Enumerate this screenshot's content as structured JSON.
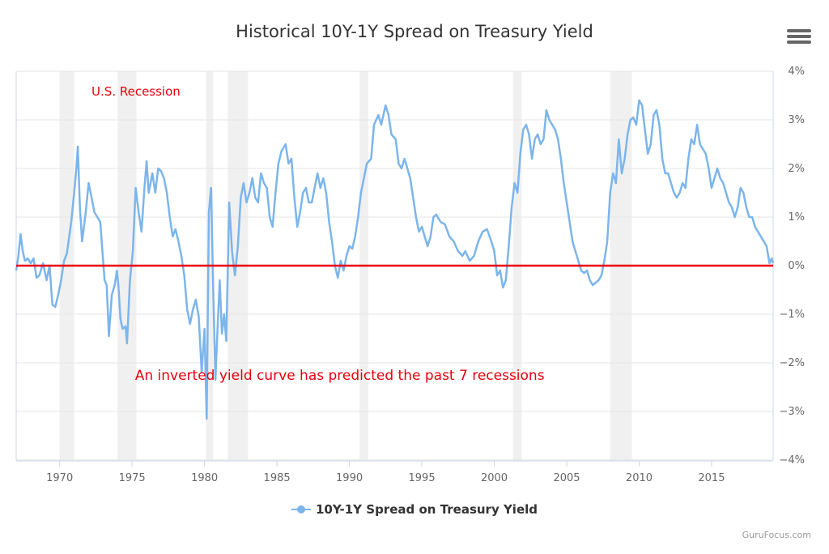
{
  "header": {
    "menu_icon": "hamburger-menu-icon"
  },
  "legend": {
    "series_name": "10Y-1Y Spread on Treasury Yield"
  },
  "credit": "GuruFocus.com",
  "colors": {
    "series": "#7cb5ec",
    "zero_line": "#e8000b",
    "recession_band": "#f0f0f0",
    "annotation": "#e8000b",
    "grid": "#e6e6e6",
    "tick_label": "#666666"
  },
  "chart_data": {
    "type": "line",
    "title": "Historical 10Y-1Y Spread on Treasury Yield",
    "xlabel": "",
    "ylabel": "",
    "xlim": [
      1967.0,
      2019.25
    ],
    "ylim": [
      -4,
      4
    ],
    "x_ticks": [
      1970,
      1975,
      1980,
      1985,
      1990,
      1995,
      2000,
      2005,
      2010,
      2015
    ],
    "y_ticks": [
      4,
      3,
      2,
      1,
      0,
      -1,
      -2,
      -3,
      -4
    ],
    "y_tick_labels": [
      "4%",
      "3%",
      "2%",
      "1%",
      "0%",
      "−1%",
      "−2%",
      "−3%",
      "−4%"
    ],
    "y_axis_side": "right",
    "grid": true,
    "reference_line": {
      "y": 0
    },
    "recessions": [
      [
        1970.0,
        1971.0
      ],
      [
        1974.0,
        1975.3
      ],
      [
        1980.1,
        1980.6
      ],
      [
        1981.6,
        1983.0
      ],
      [
        1990.7,
        1991.3
      ],
      [
        2001.3,
        2001.9
      ],
      [
        2008.0,
        2009.5
      ]
    ],
    "annotations": [
      {
        "text": "U.S. Recession",
        "x": 1972.2,
        "y": 3.5
      },
      {
        "text": "An inverted yield curve has predicted the past 7 recessions",
        "x": 1975.2,
        "y": -2.35
      }
    ],
    "series": [
      {
        "name": "10Y-1Y Spread on Treasury Yield",
        "points": [
          [
            1967.0,
            -0.1
          ],
          [
            1967.15,
            0.2
          ],
          [
            1967.3,
            0.65
          ],
          [
            1967.45,
            0.3
          ],
          [
            1967.6,
            0.1
          ],
          [
            1967.8,
            0.15
          ],
          [
            1968.0,
            0.05
          ],
          [
            1968.2,
            0.15
          ],
          [
            1968.4,
            -0.25
          ],
          [
            1968.6,
            -0.2
          ],
          [
            1968.85,
            0.05
          ],
          [
            1969.1,
            -0.3
          ],
          [
            1969.3,
            0.0
          ],
          [
            1969.5,
            -0.8
          ],
          [
            1969.7,
            -0.85
          ],
          [
            1969.9,
            -0.6
          ],
          [
            1970.1,
            -0.3
          ],
          [
            1970.3,
            0.1
          ],
          [
            1970.5,
            0.25
          ],
          [
            1970.8,
            0.9
          ],
          [
            1971.0,
            1.5
          ],
          [
            1971.15,
            2.0
          ],
          [
            1971.25,
            2.45
          ],
          [
            1971.4,
            1.2
          ],
          [
            1971.55,
            0.5
          ],
          [
            1971.8,
            1.1
          ],
          [
            1972.0,
            1.7
          ],
          [
            1972.2,
            1.4
          ],
          [
            1972.4,
            1.1
          ],
          [
            1972.6,
            1.0
          ],
          [
            1972.8,
            0.9
          ],
          [
            1972.95,
            0.3
          ],
          [
            1973.1,
            -0.3
          ],
          [
            1973.25,
            -0.4
          ],
          [
            1973.4,
            -1.45
          ],
          [
            1973.6,
            -0.6
          ],
          [
            1973.8,
            -0.4
          ],
          [
            1973.95,
            -0.1
          ],
          [
            1974.05,
            -0.4
          ],
          [
            1974.2,
            -1.1
          ],
          [
            1974.35,
            -1.3
          ],
          [
            1974.55,
            -1.25
          ],
          [
            1974.65,
            -1.6
          ],
          [
            1974.85,
            -0.3
          ],
          [
            1975.05,
            0.3
          ],
          [
            1975.25,
            1.6
          ],
          [
            1975.45,
            1.1
          ],
          [
            1975.65,
            0.7
          ],
          [
            1975.85,
            1.6
          ],
          [
            1976.0,
            2.15
          ],
          [
            1976.15,
            1.5
          ],
          [
            1976.4,
            1.9
          ],
          [
            1976.6,
            1.5
          ],
          [
            1976.8,
            2.0
          ],
          [
            1977.0,
            1.95
          ],
          [
            1977.2,
            1.8
          ],
          [
            1977.4,
            1.5
          ],
          [
            1977.6,
            1.0
          ],
          [
            1977.8,
            0.6
          ],
          [
            1978.0,
            0.75
          ],
          [
            1978.2,
            0.5
          ],
          [
            1978.4,
            0.2
          ],
          [
            1978.6,
            -0.2
          ],
          [
            1978.8,
            -0.9
          ],
          [
            1979.0,
            -1.2
          ],
          [
            1979.2,
            -0.9
          ],
          [
            1979.4,
            -0.7
          ],
          [
            1979.6,
            -1.05
          ],
          [
            1979.8,
            -2.2
          ],
          [
            1980.0,
            -1.3
          ],
          [
            1980.15,
            -3.15
          ],
          [
            1980.3,
            1.1
          ],
          [
            1980.45,
            1.6
          ],
          [
            1980.6,
            -0.5
          ],
          [
            1980.75,
            -2.35
          ],
          [
            1980.9,
            -1.3
          ],
          [
            1981.05,
            -0.3
          ],
          [
            1981.2,
            -1.4
          ],
          [
            1981.35,
            -1.0
          ],
          [
            1981.5,
            -1.55
          ],
          [
            1981.7,
            1.3
          ],
          [
            1981.9,
            0.3
          ],
          [
            1982.1,
            -0.2
          ],
          [
            1982.3,
            0.4
          ],
          [
            1982.5,
            1.4
          ],
          [
            1982.7,
            1.7
          ],
          [
            1982.9,
            1.3
          ],
          [
            1983.1,
            1.5
          ],
          [
            1983.3,
            1.8
          ],
          [
            1983.5,
            1.4
          ],
          [
            1983.7,
            1.3
          ],
          [
            1983.9,
            1.9
          ],
          [
            1984.1,
            1.7
          ],
          [
            1984.3,
            1.6
          ],
          [
            1984.5,
            1.0
          ],
          [
            1984.7,
            0.8
          ],
          [
            1984.9,
            1.5
          ],
          [
            1985.1,
            2.1
          ],
          [
            1985.3,
            2.35
          ],
          [
            1985.6,
            2.5
          ],
          [
            1985.8,
            2.1
          ],
          [
            1986.0,
            2.2
          ],
          [
            1986.2,
            1.4
          ],
          [
            1986.4,
            0.8
          ],
          [
            1986.6,
            1.1
          ],
          [
            1986.8,
            1.5
          ],
          [
            1987.0,
            1.6
          ],
          [
            1987.2,
            1.3
          ],
          [
            1987.4,
            1.3
          ],
          [
            1987.6,
            1.6
          ],
          [
            1987.8,
            1.9
          ],
          [
            1988.0,
            1.6
          ],
          [
            1988.2,
            1.8
          ],
          [
            1988.4,
            1.5
          ],
          [
            1988.6,
            0.9
          ],
          [
            1988.8,
            0.5
          ],
          [
            1989.0,
            0.0
          ],
          [
            1989.2,
            -0.25
          ],
          [
            1989.4,
            0.1
          ],
          [
            1989.6,
            -0.1
          ],
          [
            1989.8,
            0.2
          ],
          [
            1990.0,
            0.4
          ],
          [
            1990.2,
            0.35
          ],
          [
            1990.4,
            0.6
          ],
          [
            1990.6,
            1.0
          ],
          [
            1990.8,
            1.5
          ],
          [
            1991.0,
            1.8
          ],
          [
            1991.2,
            2.1
          ],
          [
            1991.5,
            2.2
          ],
          [
            1991.7,
            2.9
          ],
          [
            1992.0,
            3.1
          ],
          [
            1992.2,
            2.9
          ],
          [
            1992.5,
            3.3
          ],
          [
            1992.7,
            3.1
          ],
          [
            1992.9,
            2.7
          ],
          [
            1993.2,
            2.6
          ],
          [
            1993.4,
            2.1
          ],
          [
            1993.6,
            2.0
          ],
          [
            1993.8,
            2.2
          ],
          [
            1994.0,
            2.0
          ],
          [
            1994.2,
            1.8
          ],
          [
            1994.4,
            1.4
          ],
          [
            1994.6,
            1.0
          ],
          [
            1994.8,
            0.7
          ],
          [
            1995.0,
            0.8
          ],
          [
            1995.2,
            0.6
          ],
          [
            1995.4,
            0.4
          ],
          [
            1995.6,
            0.6
          ],
          [
            1995.8,
            1.0
          ],
          [
            1996.0,
            1.05
          ],
          [
            1996.3,
            0.9
          ],
          [
            1996.6,
            0.85
          ],
          [
            1996.9,
            0.6
          ],
          [
            1997.2,
            0.5
          ],
          [
            1997.5,
            0.3
          ],
          [
            1997.8,
            0.2
          ],
          [
            1998.0,
            0.3
          ],
          [
            1998.3,
            0.1
          ],
          [
            1998.6,
            0.2
          ],
          [
            1998.9,
            0.5
          ],
          [
            1999.2,
            0.7
          ],
          [
            1999.5,
            0.75
          ],
          [
            1999.8,
            0.5
          ],
          [
            2000.0,
            0.3
          ],
          [
            2000.2,
            -0.2
          ],
          [
            2000.4,
            -0.1
          ],
          [
            2000.6,
            -0.45
          ],
          [
            2000.8,
            -0.3
          ],
          [
            2001.0,
            0.4
          ],
          [
            2001.2,
            1.2
          ],
          [
            2001.4,
            1.7
          ],
          [
            2001.6,
            1.5
          ],
          [
            2001.8,
            2.3
          ],
          [
            2002.0,
            2.8
          ],
          [
            2002.2,
            2.9
          ],
          [
            2002.4,
            2.7
          ],
          [
            2002.6,
            2.2
          ],
          [
            2002.8,
            2.6
          ],
          [
            2003.0,
            2.7
          ],
          [
            2003.2,
            2.5
          ],
          [
            2003.4,
            2.6
          ],
          [
            2003.6,
            3.2
          ],
          [
            2003.8,
            3.0
          ],
          [
            2004.0,
            2.9
          ],
          [
            2004.2,
            2.8
          ],
          [
            2004.4,
            2.6
          ],
          [
            2004.6,
            2.2
          ],
          [
            2004.8,
            1.7
          ],
          [
            2005.0,
            1.3
          ],
          [
            2005.2,
            0.9
          ],
          [
            2005.4,
            0.5
          ],
          [
            2005.6,
            0.3
          ],
          [
            2005.8,
            0.1
          ],
          [
            2006.0,
            -0.1
          ],
          [
            2006.2,
            -0.15
          ],
          [
            2006.4,
            -0.1
          ],
          [
            2006.6,
            -0.3
          ],
          [
            2006.8,
            -0.4
          ],
          [
            2007.0,
            -0.35
          ],
          [
            2007.2,
            -0.3
          ],
          [
            2007.4,
            -0.2
          ],
          [
            2007.6,
            0.1
          ],
          [
            2007.8,
            0.5
          ],
          [
            2008.0,
            1.5
          ],
          [
            2008.2,
            1.9
          ],
          [
            2008.4,
            1.7
          ],
          [
            2008.6,
            2.6
          ],
          [
            2008.8,
            1.9
          ],
          [
            2009.0,
            2.2
          ],
          [
            2009.2,
            2.7
          ],
          [
            2009.4,
            3.0
          ],
          [
            2009.6,
            3.05
          ],
          [
            2009.8,
            2.9
          ],
          [
            2010.0,
            3.4
          ],
          [
            2010.2,
            3.3
          ],
          [
            2010.4,
            2.8
          ],
          [
            2010.6,
            2.3
          ],
          [
            2010.8,
            2.5
          ],
          [
            2011.0,
            3.1
          ],
          [
            2011.2,
            3.2
          ],
          [
            2011.4,
            2.9
          ],
          [
            2011.6,
            2.2
          ],
          [
            2011.8,
            1.9
          ],
          [
            2012.0,
            1.9
          ],
          [
            2012.2,
            1.7
          ],
          [
            2012.4,
            1.5
          ],
          [
            2012.6,
            1.4
          ],
          [
            2012.8,
            1.5
          ],
          [
            2013.0,
            1.7
          ],
          [
            2013.2,
            1.6
          ],
          [
            2013.4,
            2.2
          ],
          [
            2013.6,
            2.6
          ],
          [
            2013.8,
            2.5
          ],
          [
            2014.0,
            2.9
          ],
          [
            2014.2,
            2.5
          ],
          [
            2014.4,
            2.4
          ],
          [
            2014.6,
            2.3
          ],
          [
            2014.8,
            2.0
          ],
          [
            2015.0,
            1.6
          ],
          [
            2015.2,
            1.8
          ],
          [
            2015.4,
            2.0
          ],
          [
            2015.6,
            1.8
          ],
          [
            2015.8,
            1.7
          ],
          [
            2016.0,
            1.5
          ],
          [
            2016.2,
            1.3
          ],
          [
            2016.4,
            1.2
          ],
          [
            2016.6,
            1.0
          ],
          [
            2016.8,
            1.2
          ],
          [
            2017.0,
            1.6
          ],
          [
            2017.2,
            1.5
          ],
          [
            2017.4,
            1.2
          ],
          [
            2017.6,
            1.0
          ],
          [
            2017.8,
            1.0
          ],
          [
            2018.0,
            0.8
          ],
          [
            2018.2,
            0.7
          ],
          [
            2018.4,
            0.6
          ],
          [
            2018.6,
            0.5
          ],
          [
            2018.8,
            0.4
          ],
          [
            2019.0,
            0.05
          ],
          [
            2019.15,
            0.15
          ],
          [
            2019.25,
            0.05
          ]
        ]
      }
    ]
  }
}
